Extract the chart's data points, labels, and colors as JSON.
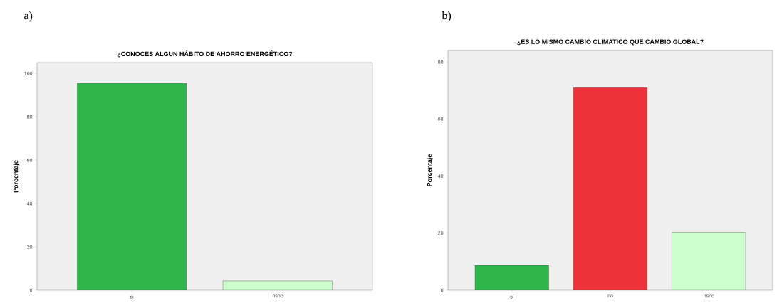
{
  "chart_data": [
    {
      "type": "bar",
      "title": "¿CONOCES ALGUN HÁBITO DE AHORRO ENERGÉTICO?",
      "ylabel": "Porcentaje",
      "annotations": [
        "a)"
      ],
      "categories": [
        "si",
        "nsnc"
      ],
      "values": [
        95.5,
        4.3
      ],
      "colors": [
        "#2eb84b",
        "#ccffcc"
      ],
      "ylim": [
        0,
        105
      ],
      "yticks": [
        0,
        20,
        40,
        60,
        80,
        100
      ]
    },
    {
      "type": "bar",
      "title": "¿ES LO MISMO CAMBIO CLIMATICO QUE CAMBIO GLOBAL?",
      "ylabel": "Porcentaje",
      "annotations": [
        "b)"
      ],
      "categories": [
        "si",
        "no",
        "nsnc"
      ],
      "values": [
        8.7,
        71.0,
        20.3
      ],
      "colors": [
        "#2eb84b",
        "#ee3239",
        "#ccffcc"
      ],
      "ylim": [
        0,
        84
      ],
      "yticks": [
        0,
        20,
        40,
        60,
        80
      ]
    }
  ]
}
